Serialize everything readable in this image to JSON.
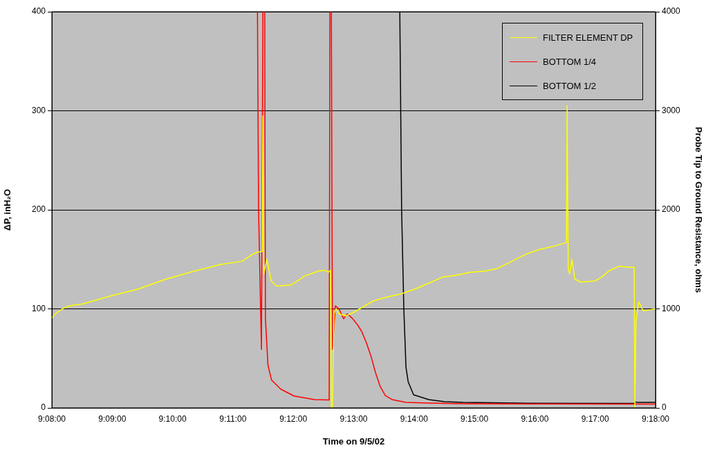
{
  "chart_data": {
    "type": "line",
    "xlabel": "Time on 9/5/02",
    "ylabel": "ΔP, inH₂O",
    "y2label": "Probe Tip to Ground Resistance, ohms",
    "xlim": [
      9.133333,
      9.3
    ],
    "xticks": [
      {
        "value": 9.133333,
        "label": "9:08:00"
      },
      {
        "value": 9.15,
        "label": "9:09:00"
      },
      {
        "value": 9.166667,
        "label": "9:10:00"
      },
      {
        "value": 9.183333,
        "label": "9:11:00"
      },
      {
        "value": 9.2,
        "label": "9:12:00"
      },
      {
        "value": 9.216667,
        "label": "9:13:00"
      },
      {
        "value": 9.233333,
        "label": "9:14:00"
      },
      {
        "value": 9.25,
        "label": "9:15:00"
      },
      {
        "value": 9.266667,
        "label": "9:16:00"
      },
      {
        "value": 9.283333,
        "label": "9:17:00"
      },
      {
        "value": 9.3,
        "label": "9:18:00"
      }
    ],
    "ylim": [
      0,
      400
    ],
    "yticks": [
      0,
      100,
      200,
      300,
      400
    ],
    "y2lim": [
      0,
      4000
    ],
    "y2ticks": [
      0,
      1000,
      2000,
      3000,
      4000
    ],
    "grid": "y",
    "legend": "top right",
    "marker": "none",
    "line_style": "solid",
    "series": [
      {
        "name": "FILTER ELEMENT DP",
        "color": "#ffff00",
        "x": [
          9.133333,
          9.1343,
          9.1362,
          9.1381,
          9.1419,
          9.1496,
          9.1572,
          9.1648,
          9.1725,
          9.1801,
          9.1858,
          9.1887,
          9.1898,
          9.1914,
          9.1916,
          9.1918,
          9.1927,
          9.1939,
          9.1954,
          9.1992,
          9.2011,
          9.203,
          9.2068,
          9.2087,
          9.2097,
          9.2103,
          9.2105,
          9.2108,
          9.2112,
          9.2118,
          9.2126,
          9.2145,
          9.2164,
          9.2183,
          9.2221,
          9.2259,
          9.2297,
          9.2336,
          9.2374,
          9.2412,
          9.245,
          9.2488,
          9.2527,
          9.2565,
          9.2603,
          9.2641,
          9.2679,
          9.2717,
          9.2754,
          9.2756,
          9.2759,
          9.2763,
          9.2769,
          9.2777,
          9.2794,
          9.2832,
          9.2851,
          9.287,
          9.2899,
          9.2927,
          9.2941,
          9.2943,
          9.2946,
          9.2954,
          9.2966,
          9.3
        ],
        "values": [
          91,
          95,
          100,
          103,
          105,
          113,
          120,
          130,
          138,
          145,
          148,
          155,
          157,
          158,
          295,
          135,
          150,
          128,
          123,
          124,
          128,
          133,
          138,
          139,
          137,
          139,
          0,
          0,
          95,
          100,
          95,
          93,
          96,
          100,
          108,
          112,
          115,
          120,
          126,
          132,
          134,
          137,
          138,
          141,
          148,
          155,
          160,
          163,
          167,
          305,
          140,
          135,
          150,
          130,
          127,
          128,
          132,
          138,
          143,
          142,
          142,
          0,
          88,
          107,
          98,
          100
        ]
      },
      {
        "name": "BOTTOM 1/4",
        "color": "#ff0000",
        "axis": "y2",
        "x": [
          9.1901,
          9.1904,
          9.1912,
          9.1916,
          9.1921,
          9.1923,
          9.193,
          9.194,
          9.1965,
          9.2002,
          9.2059,
          9.2099,
          9.2101,
          9.2105,
          9.2108,
          9.2116,
          9.2126,
          9.2139,
          9.2149,
          9.2164,
          9.2177,
          9.2189,
          9.2202,
          9.2215,
          9.2227,
          9.224,
          9.2254,
          9.2273,
          9.2311,
          9.2374,
          9.2469,
          9.2717,
          9.3
        ],
        "values": [
          4000,
          2000,
          590,
          4000,
          4000,
          900,
          430,
          280,
          190,
          120,
          84,
          80,
          4000,
          4000,
          590,
          1030,
          1000,
          900,
          950,
          900,
          840,
          770,
          655,
          515,
          355,
          215,
          125,
          84,
          56,
          49,
          42,
          40,
          38
        ]
      },
      {
        "name": "BOTTOM 1/2",
        "color": "#000000",
        "axis": "y2",
        "x": [
          9.2294,
          9.2299,
          9.2305,
          9.2311,
          9.2317,
          9.2332,
          9.2374,
          9.2418,
          9.2469,
          9.2622,
          9.2941,
          9.2945,
          9.295,
          9.3
        ],
        "values": [
          4000,
          2000,
          1010,
          410,
          265,
          132,
          84,
          63,
          56,
          48,
          45,
          60,
          55,
          55
        ]
      }
    ]
  }
}
